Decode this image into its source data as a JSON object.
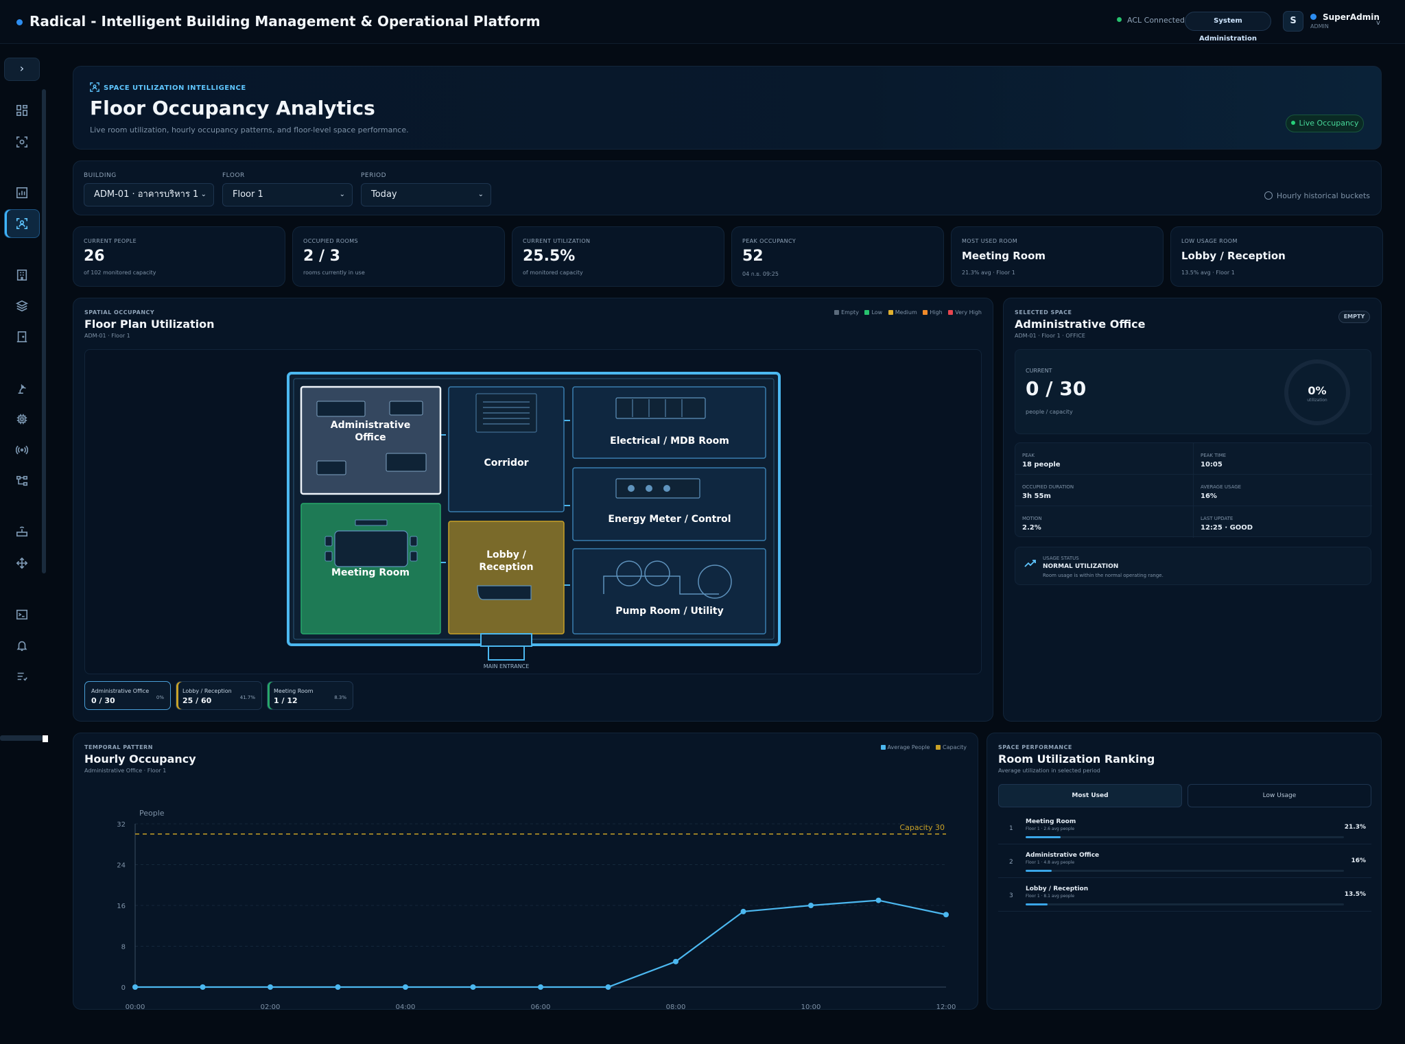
{
  "app": {
    "title": "Radical - Intelligent Building Management & Operational Platform",
    "acl_status": "ACL Connected",
    "system_admin_label": "System Administration",
    "user_initial": "S",
    "user_name": "SuperAdmin",
    "user_role": "ADMIN",
    "user_menu_chevron": "v"
  },
  "sidebar": {
    "toggle_label": "›",
    "items": [
      {
        "name": "dashboard-icon",
        "active": false
      },
      {
        "name": "scan-icon",
        "active": false
      },
      {
        "name": "chart-icon",
        "active": false
      },
      {
        "name": "occupancy-icon",
        "active": true
      },
      {
        "name": "building-icon",
        "active": false
      },
      {
        "name": "layers-icon",
        "active": false
      },
      {
        "name": "door-icon",
        "active": false
      },
      {
        "name": "robot-arm-icon",
        "active": false
      },
      {
        "name": "chip-icon",
        "active": false
      },
      {
        "name": "signal-icon",
        "active": false
      },
      {
        "name": "network-icon",
        "active": false
      },
      {
        "name": "router-icon",
        "active": false
      },
      {
        "name": "move-icon",
        "active": false
      },
      {
        "name": "terminal-icon",
        "active": false
      },
      {
        "name": "bell-icon",
        "active": false
      },
      {
        "name": "list-check-icon",
        "active": false
      }
    ]
  },
  "hero": {
    "eyebrow": "SPACE UTILIZATION INTELLIGENCE",
    "title": "Floor Occupancy Analytics",
    "subtitle": "Live room utilization, hourly occupancy patterns, and floor-level space performance.",
    "live_label": "Live Occupancy"
  },
  "filters": {
    "building_label": "BUILDING",
    "building_value": "ADM-01 · อาคารบริหาร 1",
    "floor_label": "FLOOR",
    "floor_value": "Floor 1",
    "period_label": "PERIOD",
    "period_value": "Today",
    "note": "Hourly historical buckets"
  },
  "kpis": [
    {
      "label": "CURRENT PEOPLE",
      "value": "26",
      "sub": "of 102 monitored capacity"
    },
    {
      "label": "OCCUPIED ROOMS",
      "value": "2 / 3",
      "sub": "rooms currently in use"
    },
    {
      "label": "CURRENT UTILIZATION",
      "value": "25.5%",
      "sub": "of monitored capacity"
    },
    {
      "label": "PEAK OCCUPANCY",
      "value": "52",
      "sub": "04 ก.ย. 09:25"
    },
    {
      "label": "MOST USED ROOM",
      "value": "Meeting Room",
      "sub": "21.3% avg · Floor 1"
    },
    {
      "label": "LOW USAGE ROOM",
      "value": "Lobby / Reception",
      "sub": "13.5% avg · Floor 1"
    }
  ],
  "floorplan": {
    "eyebrow": "SPATIAL OCCUPANCY",
    "title": "Floor Plan Utilization",
    "subtitle": "ADM-01 · Floor 1",
    "legend": [
      {
        "label": "Empty",
        "color": "#5b6b7c"
      },
      {
        "label": "Low",
        "color": "#27c26e"
      },
      {
        "label": "Medium",
        "color": "#e0b030"
      },
      {
        "label": "High",
        "color": "#f08a2a"
      },
      {
        "label": "Very High",
        "color": "#e8454f"
      }
    ],
    "rooms": {
      "admin_line1": "Administrative",
      "admin_line2": "Office",
      "corridor": "Corridor",
      "electrical": "Electrical / MDB Room",
      "energy": "Energy Meter / Control",
      "meeting": "Meeting Room",
      "lobby_line1": "Lobby /",
      "lobby_line2": "Reception",
      "pump": "Pump Room / Utility",
      "entrance": "MAIN ENTRANCE"
    },
    "room_pills": [
      {
        "name": "Administrative Office",
        "value": "0 / 30",
        "pct": "0%",
        "color": "#4a9fd8"
      },
      {
        "name": "Lobby / Reception",
        "value": "25 / 60",
        "pct": "41.7%",
        "color": "#c9a227"
      },
      {
        "name": "Meeting Room",
        "value": "1 / 12",
        "pct": "8.3%",
        "color": "#27a86a"
      }
    ]
  },
  "selected": {
    "eyebrow": "SELECTED SPACE",
    "title": "Administrative Office",
    "subtitle": "ADM-01 · Floor 1 · OFFICE",
    "badge": "EMPTY",
    "current_label": "CURRENT",
    "current_value": "0 / 30",
    "current_sub": "people / capacity",
    "utilization": "0%",
    "utilization_label": "utilization",
    "utilization_fraction": 0,
    "stats": [
      {
        "label": "PEAK",
        "value": "18 people"
      },
      {
        "label": "PEAK TIME",
        "value": "10:05"
      },
      {
        "label": "OCCUPIED DURATION",
        "value": "3h 55m"
      },
      {
        "label": "AVERAGE USAGE",
        "value": "16%"
      },
      {
        "label": "MOTION",
        "value": "2.2%"
      },
      {
        "label": "LAST UPDATE",
        "value": "12:25 · GOOD"
      }
    ],
    "status_label": "USAGE STATUS",
    "status_value": "NORMAL UTILIZATION",
    "status_desc": "Room usage is within the normal operating range."
  },
  "hourly": {
    "eyebrow": "TEMPORAL PATTERN",
    "title": "Hourly Occupancy",
    "subtitle": "Administrative Office · Floor 1",
    "legend_avg": "Average People",
    "legend_cap": "Capacity"
  },
  "chart_data": {
    "type": "line",
    "ylabel": "People",
    "ylim": [
      0,
      32
    ],
    "yticks": [
      "0",
      "8",
      "16",
      "24",
      "32"
    ],
    "xticks": [
      "00:00",
      "02:00",
      "04:00",
      "06:00",
      "08:00",
      "10:00",
      "12:00"
    ],
    "xlim": [
      0,
      12
    ],
    "x": [
      0,
      1,
      2,
      3,
      4,
      5,
      6,
      7,
      8,
      9,
      10,
      11,
      12
    ],
    "series": [
      {
        "name": "Average People",
        "color": "#4cb8f0",
        "values": [
          0,
          0,
          0,
          0,
          0,
          0,
          0,
          0,
          5,
          14.8,
          16,
          17,
          14.2
        ]
      }
    ],
    "capacity": {
      "name": "Capacity",
      "value": 30,
      "label": "Capacity 30",
      "color": "#c9a227"
    },
    "grid": true,
    "legend": "top-right"
  },
  "ranking": {
    "eyebrow": "SPACE PERFORMANCE",
    "title": "Room Utilization Ranking",
    "subtitle": "Average utilization in selected period",
    "tab_most": "Most Used",
    "tab_low": "Low Usage",
    "rows": [
      {
        "rank": "1",
        "name": "Meeting Room",
        "meta": "Floor 1 · 2.6 avg people",
        "pct": "21.3%",
        "fraction": 0.213
      },
      {
        "rank": "2",
        "name": "Administrative Office",
        "meta": "Floor 1 · 4.8 avg people",
        "pct": "16%",
        "fraction": 0.16
      },
      {
        "rank": "3",
        "name": "Lobby / Reception",
        "meta": "Floor 1 · 8.1 avg people",
        "pct": "13.5%",
        "fraction": 0.135
      }
    ]
  }
}
